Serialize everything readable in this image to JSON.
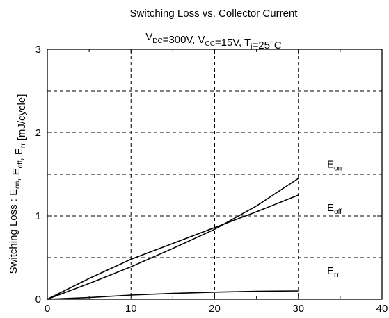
{
  "colors": {
    "background": "#ffffff",
    "axis": "#000000",
    "grid": "#000000",
    "series": "#000000"
  },
  "chart_data": {
    "type": "line",
    "title": "Switching Loss vs. Collector Current",
    "subtitle_parts": [
      {
        "text": "V",
        "sub": "DC"
      },
      {
        "text": "=300V, V",
        "sub": "CC"
      },
      {
        "text": "=15V, T",
        "sub": "j"
      },
      {
        "text": "=25°C",
        "sub": ""
      }
    ],
    "ylabel_parts": [
      {
        "text": "Switching Loss : E",
        "sub": "on"
      },
      {
        "text": ", E",
        "sub": "off"
      },
      {
        "text": ", E",
        "sub": "rr"
      },
      {
        "text": " [mJ/cycle]",
        "sub": ""
      }
    ],
    "xlim": [
      0,
      40
    ],
    "ylim": [
      0,
      3
    ],
    "x_ticks": [
      "0",
      "10",
      "20",
      "30",
      "40"
    ],
    "y_ticks": [
      "0",
      "1",
      "2",
      "3"
    ],
    "grid": true,
    "series": [
      {
        "name": "E_on",
        "label": {
          "text": "E",
          "sub": "on"
        },
        "x": [
          0,
          5,
          10,
          15,
          20,
          25,
          30
        ],
        "y": [
          0,
          0.19,
          0.39,
          0.61,
          0.84,
          1.12,
          1.45
        ]
      },
      {
        "name": "E_off",
        "label": {
          "text": "E",
          "sub": "off"
        },
        "x": [
          0,
          5,
          10,
          15,
          20,
          25,
          30
        ],
        "y": [
          0,
          0.25,
          0.48,
          0.67,
          0.86,
          1.05,
          1.25
        ]
      },
      {
        "name": "E_rr",
        "label": {
          "text": "E",
          "sub": "rr"
        },
        "x": [
          0,
          5,
          10,
          15,
          20,
          25,
          30
        ],
        "y": [
          0,
          0.02,
          0.05,
          0.07,
          0.085,
          0.095,
          0.1
        ]
      }
    ]
  }
}
